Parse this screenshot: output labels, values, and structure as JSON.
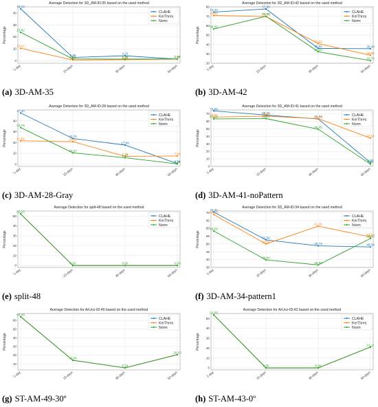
{
  "colors": {
    "CLAHE": "#1f77b4",
    "KerThres": "#ff7f0e",
    "Norm": "#2ca02c"
  },
  "panels": [
    {
      "caption_label": "(a)",
      "caption_text": "3D-AM-35"
    },
    {
      "caption_label": "(b)",
      "caption_text": "3D-AM-42"
    },
    {
      "caption_label": "(c)",
      "caption_text": "3D-AM-28-Gray"
    },
    {
      "caption_label": "(d)",
      "caption_text": "3D-AM-41-noPattern"
    },
    {
      "caption_label": "(e)",
      "caption_text": "split-48"
    },
    {
      "caption_label": "(f)",
      "caption_text": "3D-AM-34-pattern1"
    },
    {
      "caption_label": "(g)",
      "caption_text": "ST-AM-49-30º"
    },
    {
      "caption_label": "(h)",
      "caption_text": "ST-AM-43-0º"
    }
  ],
  "chart_data": [
    {
      "type": "line",
      "title": "Average Detection for 3D_AM-ID:35 based on the used method",
      "ylabel": "Percentage",
      "categories": [
        "1-day",
        "15-days",
        "35-days",
        "50-days"
      ],
      "ylim": [
        -2,
        45
      ],
      "yticks": [
        0,
        10,
        20,
        30,
        40
      ],
      "legend": "top-right",
      "grid": true,
      "series": [
        {
          "name": "CLAHE",
          "values": [
            43.43,
            2.86,
            4.23,
            1.44
          ],
          "labels": [
            "43.43",
            "2.86",
            "4.23",
            "1.44"
          ]
        },
        {
          "name": "KerThres",
          "values": [
            10.47,
            0.71,
            0.96,
            1.44
          ],
          "labels": [
            "10.47",
            "0.71",
            "0.96",
            "1.44"
          ]
        },
        {
          "name": "Norm",
          "values": [
            23.82,
            1.55,
            1.44,
            1.6
          ],
          "labels": [
            "23.82",
            "1.55",
            "1.44",
            "1.60"
          ]
        }
      ]
    },
    {
      "type": "line",
      "title": "Average Detection for 3D_AM-ID:42 based on the used method",
      "ylabel": "Percentage",
      "categories": [
        "1-day",
        "15-days",
        "35-days",
        "50-days"
      ],
      "ylim": [
        20,
        80
      ],
      "yticks": [
        20,
        30,
        40,
        50,
        60,
        70,
        80
      ],
      "legend": "top-right",
      "grid": true,
      "series": [
        {
          "name": "CLAHE",
          "values": [
            74.48,
            77.8,
            35.82,
            35.48
          ],
          "labels": [
            "74.48",
            "77.80",
            "35.82",
            "35.48"
          ]
        },
        {
          "name": "KerThres",
          "values": [
            70.85,
            69.71,
            41.02,
            28.53
          ],
          "labels": [
            "70.85",
            "69.71",
            "41.02",
            "28.53"
          ]
        },
        {
          "name": "Norm",
          "values": [
            56.42,
            70.0,
            32.23,
            22.76
          ],
          "labels": [
            "56.42",
            "70.00",
            "32.23",
            "22.76"
          ]
        }
      ]
    },
    {
      "type": "line",
      "title": "Average Detection for 3D_AM-ID:28 based on the used method",
      "ylabel": "Percentage",
      "categories": [
        "1-day",
        "15-days",
        "35-days",
        "50-days"
      ],
      "ylim": [
        -2,
        50
      ],
      "yticks": [
        0,
        10,
        20,
        30,
        40
      ],
      "legend": "top-right",
      "grid": true,
      "series": [
        {
          "name": "CLAHE",
          "values": [
            47.3,
            23.7,
            17.66,
            0.58
          ],
          "labels": [
            "47.30",
            "23.70",
            "17.66",
            "0.58"
          ]
        },
        {
          "name": "KerThres",
          "values": [
            21.56,
            20.82,
            7.26,
            7.54
          ],
          "labels": [
            "21.56",
            "20.82",
            "7.26",
            "7.54"
          ]
        },
        {
          "name": "Norm",
          "values": [
            33.79,
            10.47,
            5.97,
            0.29
          ],
          "labels": [
            "33.79",
            "10.47",
            "5.97",
            "0.29"
          ]
        }
      ]
    },
    {
      "type": "line",
      "title": "Average Detection for 3D_AM-ID:41 based on the used method",
      "ylabel": "Percentage",
      "categories": [
        "1-day",
        "15-days",
        "35-days",
        "50-days"
      ],
      "ylim": [
        0,
        75
      ],
      "yticks": [
        0,
        10,
        20,
        30,
        40,
        50,
        60,
        70
      ],
      "legend": "top-right",
      "grid": true,
      "series": [
        {
          "name": "CLAHE",
          "values": [
            73.84,
            68.25,
            63.06,
            5.0
          ],
          "labels": [
            "73.84",
            "68.25",
            "63.06",
            "5.00"
          ]
        },
        {
          "name": "KerThres",
          "values": [
            65.54,
            66.82,
            63.53,
            37.54
          ],
          "labels": [
            "65.54",
            "66.82",
            "63.53",
            "37.54"
          ]
        },
        {
          "name": "Norm",
          "values": [
            63.15,
            63.57,
            49.45,
            3.0
          ],
          "labels": [
            "63.15",
            "63.57",
            "49.45",
            "3.00"
          ]
        }
      ]
    },
    {
      "type": "line",
      "title": "Average Detection for split-48 based on the used method",
      "ylabel": "Percentage",
      "categories": [
        "1-day",
        "15-days",
        "35-days",
        "50-days"
      ],
      "ylim": [
        -2,
        55
      ],
      "yticks": [
        0,
        10,
        20,
        30,
        40,
        50
      ],
      "legend": "top-right",
      "grid": true,
      "series": [
        {
          "name": "CLAHE",
          "values": [
            52.2,
            0.0,
            0.0,
            0.0
          ],
          "labels": [
            "",
            "",
            "",
            ""
          ]
        },
        {
          "name": "KerThres",
          "values": [
            52.2,
            0.0,
            0.0,
            0.0
          ],
          "labels": [
            "",
            "",
            "",
            ""
          ]
        },
        {
          "name": "Norm",
          "values": [
            52.2,
            0.0,
            0.0,
            0.0
          ],
          "labels": [
            "52.20",
            "0.00",
            "0.00",
            "0.00"
          ]
        }
      ]
    },
    {
      "type": "line",
      "title": "Average Detection for 3D_AM-ID:34 based on the used method",
      "ylabel": "Percentage",
      "categories": [
        "1-day",
        "15-days",
        "35-days",
        "50-days"
      ],
      "ylim": [
        35,
        71
      ],
      "yticks": [
        35,
        40,
        45,
        50,
        55,
        60,
        65,
        70
      ],
      "legend": "top-right",
      "grid": true,
      "series": [
        {
          "name": "CLAHE",
          "values": [
            70.35,
            52.6,
            48.79,
            48.09
          ],
          "labels": [
            "70.35",
            "52.60",
            "48.79",
            "48.09"
          ]
        },
        {
          "name": "KerThres",
          "values": [
            68.75,
            50.0,
            61.36,
            54.52
          ],
          "labels": [
            "68.75",
            "50.00",
            "61.36",
            "54.52"
          ]
        },
        {
          "name": "Norm",
          "values": [
            58.26,
            39.84,
            36.59,
            53.5
          ],
          "labels": [
            "58.26",
            "39.84",
            "36.59",
            "53.50"
          ]
        }
      ]
    },
    {
      "type": "line",
      "title": "Average Detection for ArUco-ID:49 based on the used method",
      "ylabel": "Percentage",
      "categories": [
        "1-day",
        "15-days",
        "35-days",
        "50-days"
      ],
      "ylim": [
        3,
        68
      ],
      "yticks": [
        10,
        20,
        30,
        40,
        50,
        60
      ],
      "legend": "top-right",
      "grid": true,
      "series": [
        {
          "name": "CLAHE",
          "values": [
            64.33,
            14.06,
            5.34,
            20.53
          ],
          "labels": [
            "",
            "",
            "",
            ""
          ]
        },
        {
          "name": "KerThres",
          "values": [
            64.33,
            14.06,
            5.34,
            20.53
          ],
          "labels": [
            "",
            "",
            "",
            ""
          ]
        },
        {
          "name": "Norm",
          "values": [
            64.33,
            14.06,
            5.34,
            20.53
          ],
          "labels": [
            "64.33",
            "14.06",
            "5.34",
            "20.53"
          ]
        }
      ]
    },
    {
      "type": "line",
      "title": "Average Detection for ArUco-ID:43 based on the used method",
      "ylabel": "Percentage",
      "categories": [
        "1-day",
        "15-days",
        "35-days",
        "50-days"
      ],
      "ylim": [
        -2,
        55
      ],
      "yticks": [
        0,
        10,
        20,
        30,
        40,
        50
      ],
      "legend": "top-right",
      "grid": true,
      "series": [
        {
          "name": "CLAHE",
          "values": [
            53.55,
            0.0,
            0.0,
            21.11
          ],
          "labels": [
            "",
            "",
            "",
            ""
          ]
        },
        {
          "name": "KerThres",
          "values": [
            53.55,
            0.0,
            0.0,
            21.11
          ],
          "labels": [
            "",
            "",
            "",
            ""
          ]
        },
        {
          "name": "Norm",
          "values": [
            53.55,
            0.0,
            0.0,
            21.11
          ],
          "labels": [
            "53.55",
            "0.00",
            "0.00",
            "21.11"
          ]
        }
      ]
    }
  ]
}
